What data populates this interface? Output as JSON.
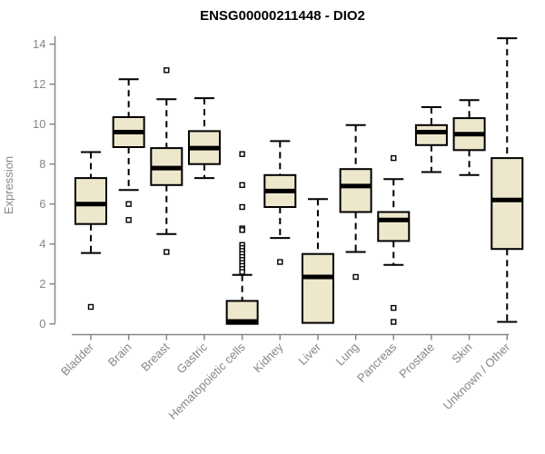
{
  "chart_data": {
    "type": "boxplot",
    "title": "ENSG00000211448 - DIO2",
    "ylabel": "Expression",
    "ylim": [
      0,
      14.4
    ],
    "yticks": [
      0,
      2,
      4,
      6,
      8,
      10,
      12,
      14
    ],
    "grid": false,
    "legend": "none",
    "categories": [
      "Bladder",
      "Brain",
      "Breast",
      "Gastric",
      "Hematopoietic cells",
      "Kidney",
      "Liver",
      "Lung",
      "Pancreas",
      "Prostate",
      "Skin",
      "Unknown / Other"
    ],
    "series": [
      {
        "category": "Bladder",
        "whisker_low": 3.55,
        "q1": 5.0,
        "median": 6.0,
        "q3": 7.3,
        "whisker_high": 8.6,
        "outliers": [
          0.85
        ]
      },
      {
        "category": "Brain",
        "whisker_low": 6.7,
        "q1": 8.85,
        "median": 9.6,
        "q3": 10.35,
        "whisker_high": 12.25,
        "outliers": [
          6.0,
          5.2
        ]
      },
      {
        "category": "Breast",
        "whisker_low": 4.5,
        "q1": 6.95,
        "median": 7.8,
        "q3": 8.8,
        "whisker_high": 11.25,
        "outliers": [
          12.7,
          3.6
        ]
      },
      {
        "category": "Gastric",
        "whisker_low": 7.3,
        "q1": 8.0,
        "median": 8.8,
        "q3": 9.65,
        "whisker_high": 11.3,
        "outliers": []
      },
      {
        "category": "Hematopoietic cells",
        "whisker_low": 0.0,
        "q1": 0.0,
        "median": 0.12,
        "q3": 1.15,
        "whisker_high": 2.45,
        "outliers": [
          8.5,
          6.95,
          5.85,
          4.78,
          4.7,
          3.95,
          3.8,
          3.65,
          3.5,
          3.35,
          3.2,
          3.05,
          2.9,
          2.75,
          2.6
        ]
      },
      {
        "category": "Kidney",
        "whisker_low": 4.3,
        "q1": 5.85,
        "median": 6.65,
        "q3": 7.45,
        "whisker_high": 9.15,
        "outliers": [
          3.1
        ]
      },
      {
        "category": "Liver",
        "whisker_low": 0.05,
        "q1": 0.05,
        "median": 2.35,
        "q3": 3.5,
        "whisker_high": 6.25,
        "outliers": []
      },
      {
        "category": "Lung",
        "whisker_low": 3.6,
        "q1": 5.6,
        "median": 6.9,
        "q3": 7.75,
        "whisker_high": 9.95,
        "outliers": [
          2.35
        ]
      },
      {
        "category": "Pancreas",
        "whisker_low": 2.95,
        "q1": 4.15,
        "median": 5.2,
        "q3": 5.6,
        "whisker_high": 7.25,
        "outliers": [
          8.3,
          0.8,
          0.1
        ]
      },
      {
        "category": "Prostate",
        "whisker_low": 7.6,
        "q1": 8.95,
        "median": 9.6,
        "q3": 9.95,
        "whisker_high": 10.85,
        "outliers": []
      },
      {
        "category": "Skin",
        "whisker_low": 7.45,
        "q1": 8.7,
        "median": 9.5,
        "q3": 10.3,
        "whisker_high": 11.2,
        "outliers": []
      },
      {
        "category": "Unknown / Other",
        "whisker_low": 0.1,
        "q1": 3.75,
        "median": 6.2,
        "q3": 8.3,
        "whisker_high": 14.3,
        "outliers": []
      }
    ],
    "colors": {
      "background": "#FFFFFF",
      "box_fill": "#EDE7CC",
      "box_border": "#000000",
      "median": "#000000",
      "whisker": "#000000",
      "outlier_stroke": "#000000",
      "outlier_fill": "#FFFFFF",
      "axis": "#878787",
      "tick_label": "#878787",
      "title": "#000000"
    }
  }
}
